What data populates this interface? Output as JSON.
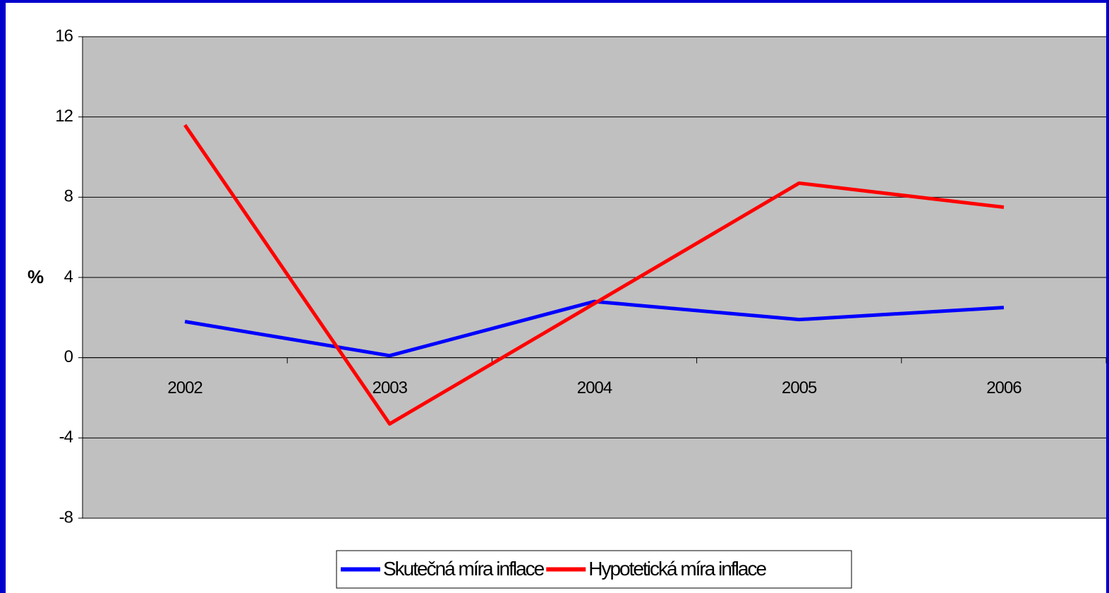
{
  "chart_data": {
    "type": "line",
    "y_label": "%",
    "categories": [
      "2002",
      "2003",
      "2004",
      "2005",
      "2006"
    ],
    "series": [
      {
        "name": "Skutečná míra inflace",
        "color": "#0000ff",
        "values": [
          1.8,
          0.1,
          2.8,
          1.9,
          2.5
        ]
      },
      {
        "name": "Hypotetická míra inflace",
        "color": "#ff0000",
        "values": [
          11.6,
          -3.3,
          2.7,
          8.7,
          7.5
        ]
      }
    ],
    "ylim": [
      -8,
      16
    ],
    "yticks": [
      -8,
      -4,
      0,
      4,
      8,
      12,
      16
    ],
    "grid": true,
    "legend": "bottom"
  }
}
